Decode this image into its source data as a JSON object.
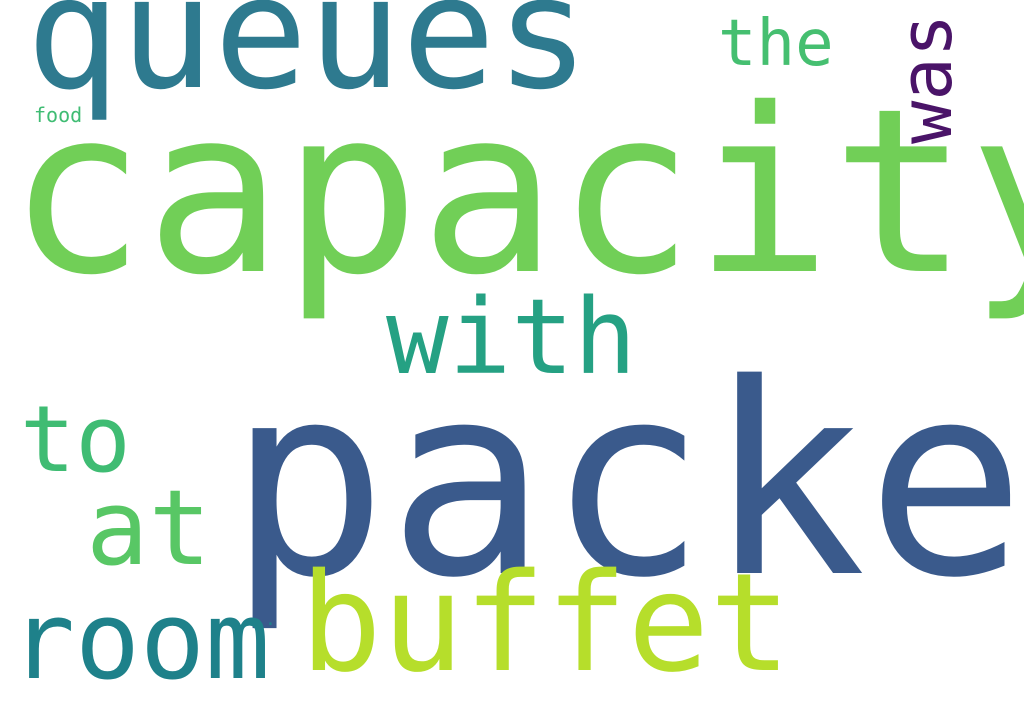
{
  "words": [
    {
      "text": "capacity",
      "color": "#71CF57"
    },
    {
      "text": "packed",
      "color": "#3A5A8C"
    },
    {
      "text": "queues",
      "color": "#2E7A8F"
    },
    {
      "text": "buffet",
      "color": "#B6DE2B"
    },
    {
      "text": "with",
      "color": "#25A183"
    },
    {
      "text": "room",
      "color": "#1E818A"
    },
    {
      "text": "at",
      "color": "#58C765"
    },
    {
      "text": "to",
      "color": "#3FBC73"
    },
    {
      "text": "the",
      "color": "#45BF70"
    },
    {
      "text": "was",
      "color": "#4A1468"
    },
    {
      "text": "food",
      "color": "#3FBC73"
    },
    {
      "text": ".",
      "color": "#1E818A"
    }
  ]
}
